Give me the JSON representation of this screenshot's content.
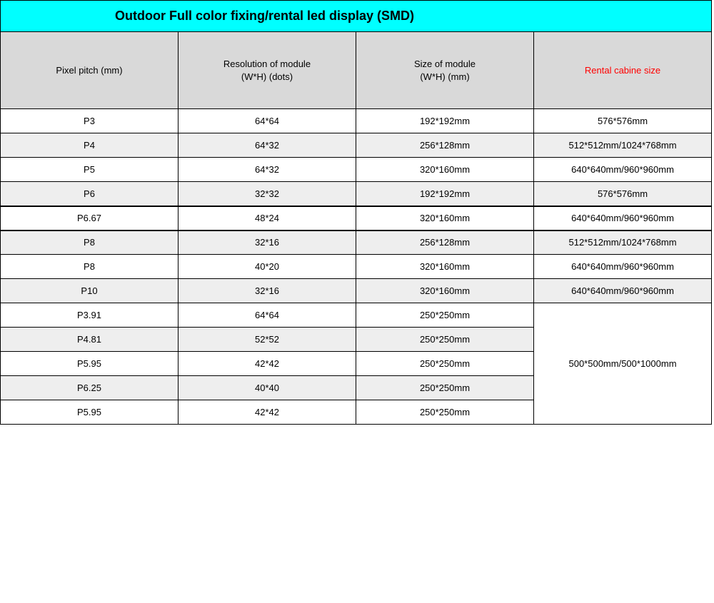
{
  "table": {
    "type": "table",
    "title": "Outdoor Full color fixing/rental led display (SMD)",
    "title_bg": "#00ffff",
    "title_fontsize": 18,
    "header_bg": "#d9d9d9",
    "header_fontsize": 13,
    "body_fontsize": 13,
    "border_color": "#000000",
    "shade_bg": "#eeeeee",
    "noshade_bg": "#ffffff",
    "red_text": "#ff0000",
    "columns": [
      {
        "label_line1": "Pixel pitch (mm)",
        "label_line2": "",
        "red": false
      },
      {
        "label_line1": "Resolution of module",
        "label_line2": "(W*H) (dots)",
        "red": false
      },
      {
        "label_line1": "Size of module",
        "label_line2": "(W*H) (mm)",
        "red": false
      },
      {
        "label_line1": "Rental cabine size",
        "label_line2": "",
        "red": true
      }
    ],
    "rows": [
      {
        "shaded": false,
        "cells": [
          "P3",
          "64*64",
          "192*192mm",
          "576*576mm"
        ]
      },
      {
        "shaded": true,
        "cells": [
          "P4",
          "64*32",
          "256*128mm",
          "512*512mm/1024*768mm"
        ]
      },
      {
        "shaded": false,
        "cells": [
          "P5",
          "64*32",
          "320*160mm",
          "640*640mm/960*960mm"
        ]
      },
      {
        "shaded": true,
        "cells": [
          "P6",
          "32*32",
          "192*192mm",
          "576*576mm"
        ]
      },
      {
        "shaded": false,
        "cells": [
          "P6.67",
          "48*24",
          "320*160mm",
          "640*640mm/960*960mm"
        ],
        "thick_top": true
      },
      {
        "shaded": true,
        "cells": [
          "P8",
          "32*16",
          "256*128mm",
          "512*512mm/1024*768mm"
        ],
        "thick_top": true
      },
      {
        "shaded": false,
        "cells": [
          "P8",
          "40*20",
          "320*160mm",
          "640*640mm/960*960mm"
        ]
      },
      {
        "shaded": true,
        "cells": [
          "P10",
          "32*16",
          "320*160mm",
          "640*640mm/960*960mm"
        ]
      },
      {
        "shaded": false,
        "cells": [
          "P3.91",
          "64*64",
          "250*250mm"
        ],
        "merge_start": true,
        "merge_value": "500*500mm/500*1000mm",
        "merge_span": 5
      },
      {
        "shaded": true,
        "cells": [
          "P4.81",
          "52*52",
          "250*250mm"
        ]
      },
      {
        "shaded": false,
        "cells": [
          "P5.95",
          "42*42",
          "250*250mm"
        ]
      },
      {
        "shaded": true,
        "cells": [
          "P6.25",
          "40*40",
          "250*250mm"
        ]
      },
      {
        "shaded": false,
        "cells": [
          "P5.95",
          "42*42",
          "250*250mm"
        ]
      }
    ]
  }
}
